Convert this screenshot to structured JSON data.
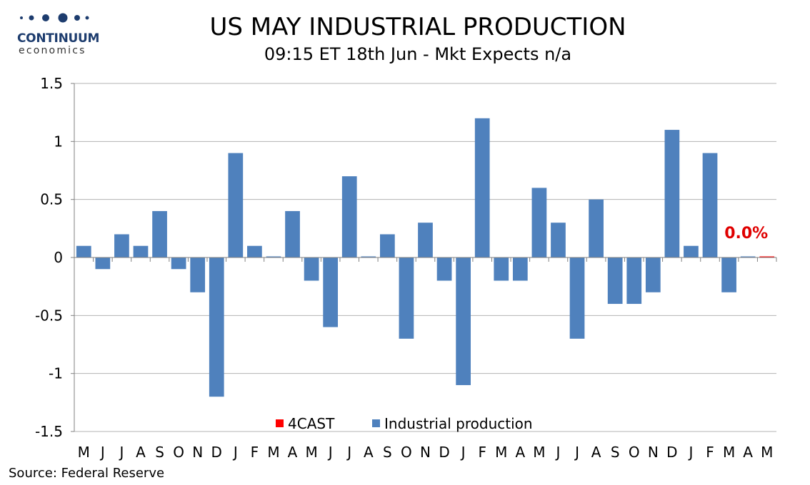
{
  "logo": {
    "name": "CONTINUUM",
    "sub": "economics",
    "color": "#1d3c6e"
  },
  "header": {
    "title": "US MAY INDUSTRIAL PRODUCTION",
    "subtitle": "09:15 ET 18th Jun - Mkt Expects n/a"
  },
  "footer": {
    "source": "Source: Federal Reserve"
  },
  "chart_data": {
    "type": "bar",
    "title": "US MAY INDUSTRIAL PRODUCTION",
    "subtitle": "09:15 ET 18th Jun - Mkt Expects n/a",
    "ylim": [
      -1.5,
      1.5
    ],
    "ytick_values": [
      -1.5,
      -1,
      -0.5,
      0,
      0.5,
      1,
      1.5
    ],
    "ytick_labels": [
      "-1.5",
      "-1",
      "-0.5",
      "0",
      "0.5",
      "1",
      "1.5"
    ],
    "grid": true,
    "legend_position": "bottom-center",
    "categories": [
      "M",
      "J",
      "J",
      "A",
      "S",
      "O",
      "N",
      "D",
      "J",
      "F",
      "M",
      "A",
      "M",
      "J",
      "J",
      "A",
      "S",
      "O",
      "N",
      "D",
      "J",
      "F",
      "M",
      "A",
      "M",
      "J",
      "J",
      "A",
      "S",
      "O",
      "N",
      "D",
      "J",
      "F",
      "M",
      "A",
      "M"
    ],
    "series": [
      {
        "name": "Industrial production",
        "color": "#4f81bd",
        "values": [
          0.1,
          -0.1,
          0.2,
          0.1,
          0.4,
          -0.1,
          -0.3,
          -1.2,
          0.9,
          0.1,
          0.0,
          0.4,
          -0.2,
          -0.6,
          0.7,
          0.0,
          0.2,
          -0.7,
          0.3,
          -0.2,
          -1.1,
          1.2,
          -0.2,
          -0.2,
          0.6,
          0.3,
          -0.7,
          0.5,
          -0.4,
          -0.4,
          -0.3,
          1.1,
          0.1,
          0.9,
          -0.3,
          0.0,
          null
        ]
      },
      {
        "name": "4CAST",
        "color": "#ff0000",
        "values": [
          null,
          null,
          null,
          null,
          null,
          null,
          null,
          null,
          null,
          null,
          null,
          null,
          null,
          null,
          null,
          null,
          null,
          null,
          null,
          null,
          null,
          null,
          null,
          null,
          null,
          null,
          null,
          null,
          null,
          null,
          null,
          null,
          null,
          null,
          null,
          null,
          0.0
        ]
      }
    ],
    "annotation": {
      "text": "0.0%",
      "category_index": 36,
      "color": "#e00000"
    },
    "legend_order": [
      "4CAST",
      "Industrial production"
    ]
  }
}
